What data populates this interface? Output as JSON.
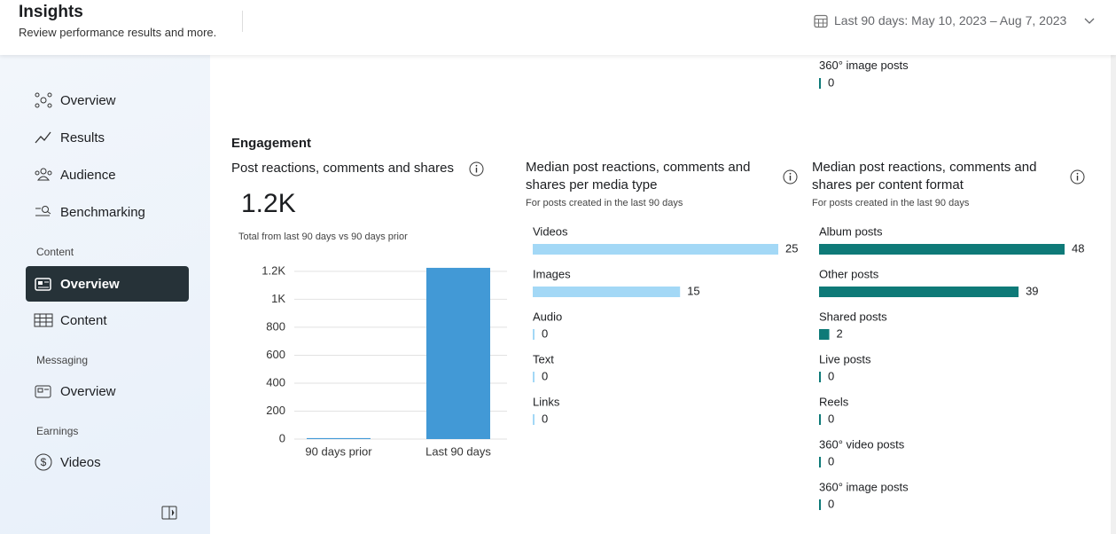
{
  "header": {
    "title": "Insights",
    "subtitle": "Review performance results and more.",
    "date_range": "Last 90 days: May 10, 2023 – Aug 7, 2023"
  },
  "sidebar": {
    "items": [
      "Overview",
      "Results",
      "Audience",
      "Benchmarking"
    ],
    "sections": [
      {
        "title": "Content",
        "items": [
          "Overview",
          "Content"
        ]
      },
      {
        "title": "Messaging",
        "items": [
          "Overview"
        ]
      },
      {
        "title": "Earnings",
        "items": [
          "Videos"
        ]
      }
    ]
  },
  "above_fold": {
    "label": "360° image posts",
    "value": 0
  },
  "section_title": "Engagement",
  "chart_data": [
    {
      "type": "bar",
      "title": "Post reactions, comments and shares",
      "total": {
        "value": 1200,
        "label": "1.2K"
      },
      "subtitle": "Total from last 90 days vs 90 days prior",
      "categories": [
        "90 days prior",
        "Last 90 days"
      ],
      "values": [
        7,
        1225
      ],
      "color": "#4299d6",
      "ylim": [
        0,
        1250
      ],
      "yticks": [
        0,
        200,
        400,
        600,
        800,
        {
          "value": 1000,
          "label": "1K"
        },
        {
          "value": 1200,
          "label": "1.2K"
        }
      ],
      "grid": true
    },
    {
      "type": "bar",
      "orientation": "horizontal",
      "title": "Median post reactions, comments and shares per media type",
      "subtitle": "For posts created in the last 90 days",
      "categories": [
        "Videos",
        "Images",
        "Audio",
        "Text",
        "Links"
      ],
      "values": [
        25,
        15,
        0,
        0,
        0
      ],
      "color": "#a3d8f6"
    },
    {
      "type": "bar",
      "orientation": "horizontal",
      "title": "Median post reactions, comments and shares per content format",
      "subtitle": "For posts created in the last 90 days",
      "categories": [
        "Album posts",
        "Other posts",
        "Shared posts",
        "Live posts",
        "Reels",
        "360° video posts",
        "360° image posts"
      ],
      "values": [
        48,
        39,
        2,
        0,
        0,
        0,
        0
      ],
      "color": "#0e7a78"
    }
  ]
}
